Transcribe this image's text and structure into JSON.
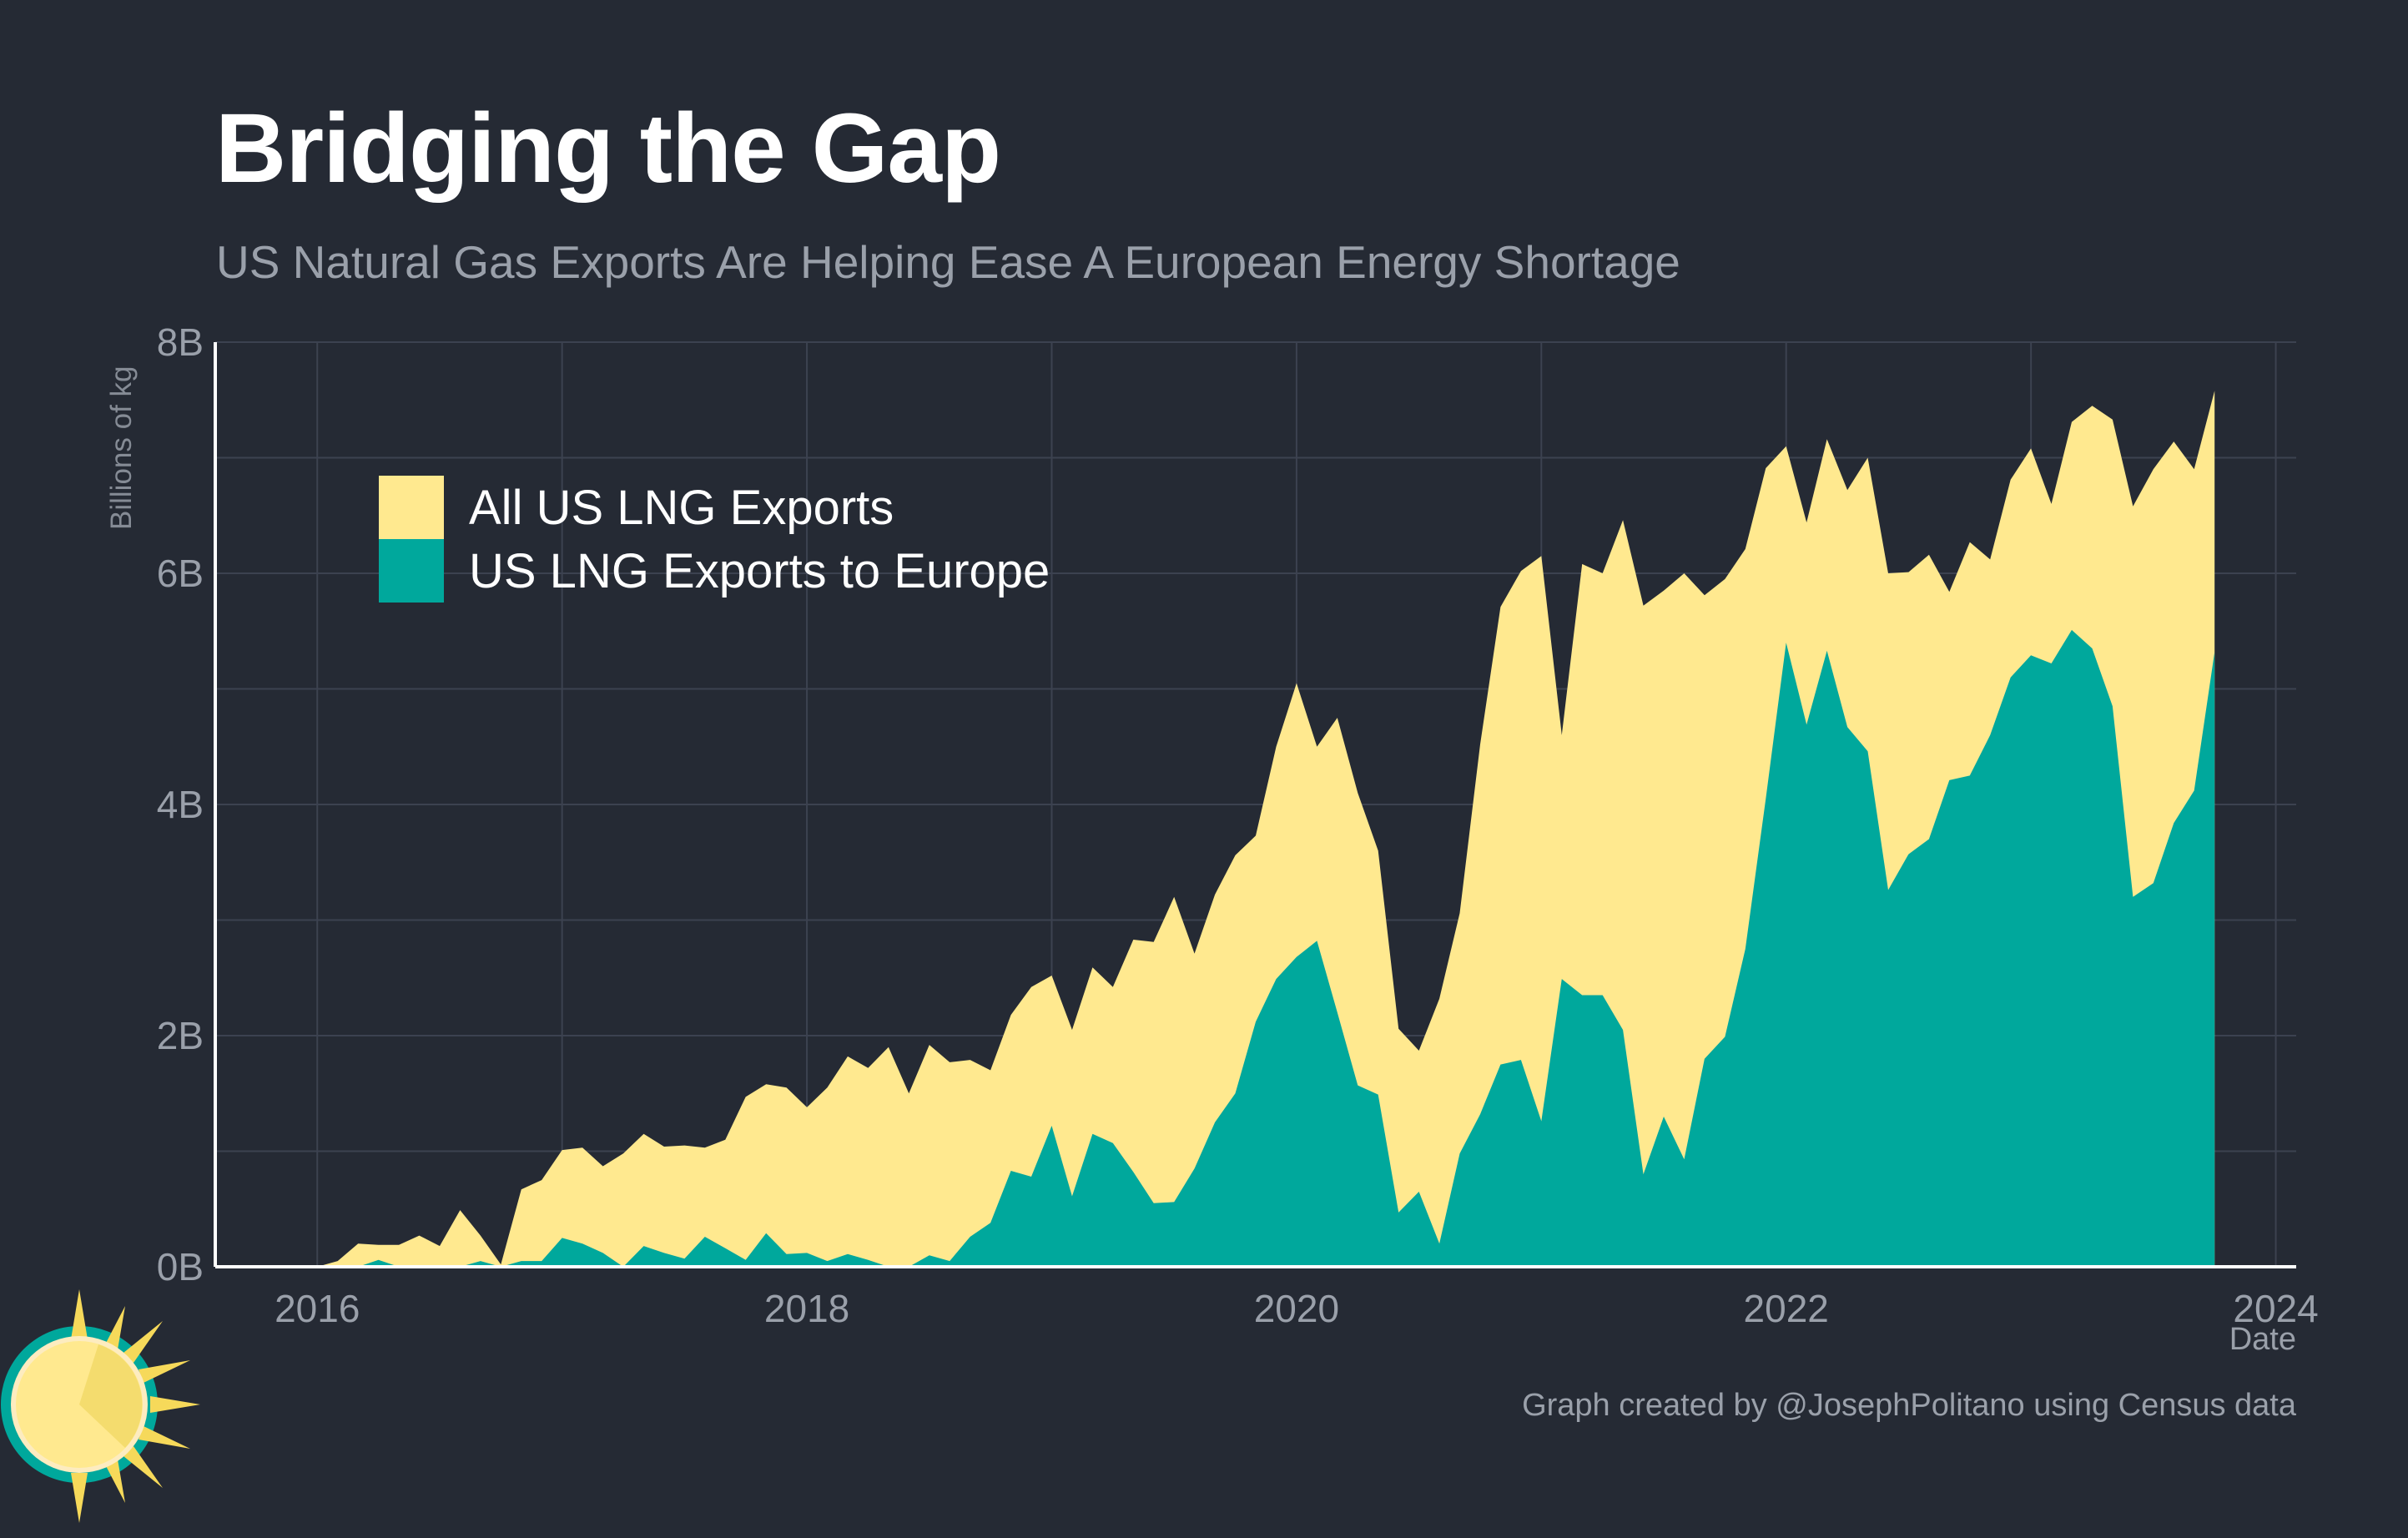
{
  "chart_data": {
    "type": "area",
    "title": "Bridging the Gap",
    "subtitle": "US Natural Gas Exports Are Helping Ease A European Energy Shortage",
    "xlabel": "Date",
    "ylabel": "Billions of kg",
    "caption": "Graph created by @JosephPolitano using Census data",
    "ylim": [
      0,
      8
    ],
    "xlim": [
      "2015-08",
      "2024-02"
    ],
    "y_ticks": [
      {
        "value": 0,
        "label": "0B"
      },
      {
        "value": 2,
        "label": "2B"
      },
      {
        "value": 4,
        "label": "4B"
      },
      {
        "value": 6,
        "label": "6B"
      },
      {
        "value": 8,
        "label": "8B"
      }
    ],
    "x_ticks": [
      {
        "value": "2016-01",
        "label": "2016"
      },
      {
        "value": "2018-01",
        "label": "2018"
      },
      {
        "value": "2020-01",
        "label": "2020"
      },
      {
        "value": "2022-01",
        "label": "2022"
      },
      {
        "value": "2024-01",
        "label": "2024"
      }
    ],
    "grid": true,
    "legend_position": "top-left",
    "x": [
      "2016-01",
      "2016-02",
      "2016-03",
      "2016-04",
      "2016-05",
      "2016-06",
      "2016-07",
      "2016-08",
      "2016-09",
      "2016-10",
      "2016-11",
      "2016-12",
      "2017-01",
      "2017-02",
      "2017-03",
      "2017-04",
      "2017-05",
      "2017-06",
      "2017-07",
      "2017-08",
      "2017-09",
      "2017-10",
      "2017-11",
      "2017-12",
      "2018-01",
      "2018-02",
      "2018-03",
      "2018-04",
      "2018-05",
      "2018-06",
      "2018-07",
      "2018-08",
      "2018-09",
      "2018-10",
      "2018-11",
      "2018-12",
      "2019-01",
      "2019-02",
      "2019-03",
      "2019-04",
      "2019-05",
      "2019-06",
      "2019-07",
      "2019-08",
      "2019-09",
      "2019-10",
      "2019-11",
      "2019-12",
      "2020-01",
      "2020-02",
      "2020-03",
      "2020-04",
      "2020-05",
      "2020-06",
      "2020-07",
      "2020-08",
      "2020-09",
      "2020-10",
      "2020-11",
      "2020-12",
      "2021-01",
      "2021-02",
      "2021-03",
      "2021-04",
      "2021-05",
      "2021-06",
      "2021-07",
      "2021-08",
      "2021-09",
      "2021-10",
      "2021-11",
      "2021-12",
      "2022-01",
      "2022-02",
      "2022-03",
      "2022-04",
      "2022-05",
      "2022-06",
      "2022-07",
      "2022-08",
      "2022-09",
      "2022-10",
      "2022-11",
      "2022-12",
      "2023-01",
      "2023-02",
      "2023-03",
      "2023-04",
      "2023-05",
      "2023-06",
      "2023-07",
      "2023-08",
      "2023-09",
      "2023-10"
    ],
    "series": [
      {
        "name": "All US LNG Exports",
        "color": "#ffe98f",
        "values": [
          0,
          0.05,
          0.2,
          0.19,
          0.19,
          0.27,
          0.18,
          0.49,
          0.27,
          0.02,
          0.67,
          0.75,
          1.01,
          1.03,
          0.87,
          0.98,
          1.15,
          1.04,
          1.05,
          1.03,
          1.1,
          1.47,
          1.58,
          1.55,
          1.38,
          1.55,
          1.82,
          1.72,
          1.9,
          1.5,
          1.92,
          1.77,
          1.79,
          1.7,
          2.18,
          2.42,
          2.52,
          2.05,
          2.59,
          2.42,
          2.83,
          2.81,
          3.2,
          2.71,
          3.22,
          3.56,
          3.73,
          4.5,
          5.05,
          4.5,
          4.75,
          4.1,
          3.6,
          2.06,
          1.87,
          2.32,
          3.06,
          4.52,
          5.71,
          6.02,
          6.15,
          4.6,
          6.08,
          6.0,
          6.46,
          5.72,
          5.85,
          6.0,
          5.81,
          5.95,
          6.21,
          6.91,
          7.1,
          6.44,
          7.16,
          6.72,
          7.0,
          6.0,
          6.01,
          6.16,
          5.84,
          6.27,
          6.12,
          6.81,
          7.08,
          6.6,
          7.31,
          7.45,
          7.33,
          6.58,
          6.9,
          7.14,
          6.9,
          7.58
        ]
      },
      {
        "name": "US LNG Exports to Europe",
        "color": "#00a89c",
        "values": [
          0,
          0,
          0,
          0.06,
          0,
          0,
          0,
          0,
          0.05,
          0,
          0.05,
          0.05,
          0.25,
          0.2,
          0.12,
          0,
          0.18,
          0.12,
          0.07,
          0.26,
          0.16,
          0.06,
          0.29,
          0.11,
          0.12,
          0.05,
          0.11,
          0.06,
          0,
          0,
          0.1,
          0.05,
          0.26,
          0.38,
          0.83,
          0.78,
          1.22,
          0.61,
          1.15,
          1.07,
          0.82,
          0.55,
          0.56,
          0.85,
          1.25,
          1.5,
          2.12,
          2.49,
          2.68,
          2.82,
          2.2,
          1.57,
          1.49,
          0.47,
          0.65,
          0.2,
          0.98,
          1.32,
          1.75,
          1.79,
          1.26,
          2.49,
          2.35,
          2.35,
          2.05,
          0.8,
          1.3,
          0.93,
          1.8,
          1.99,
          2.75,
          4.05,
          5.4,
          4.69,
          5.33,
          4.67,
          4.46,
          3.26,
          3.57,
          3.7,
          4.21,
          4.25,
          4.6,
          5.1,
          5.29,
          5.22,
          5.51,
          5.35,
          4.85,
          3.2,
          3.32,
          3.84,
          4.12,
          5.32
        ]
      }
    ]
  }
}
